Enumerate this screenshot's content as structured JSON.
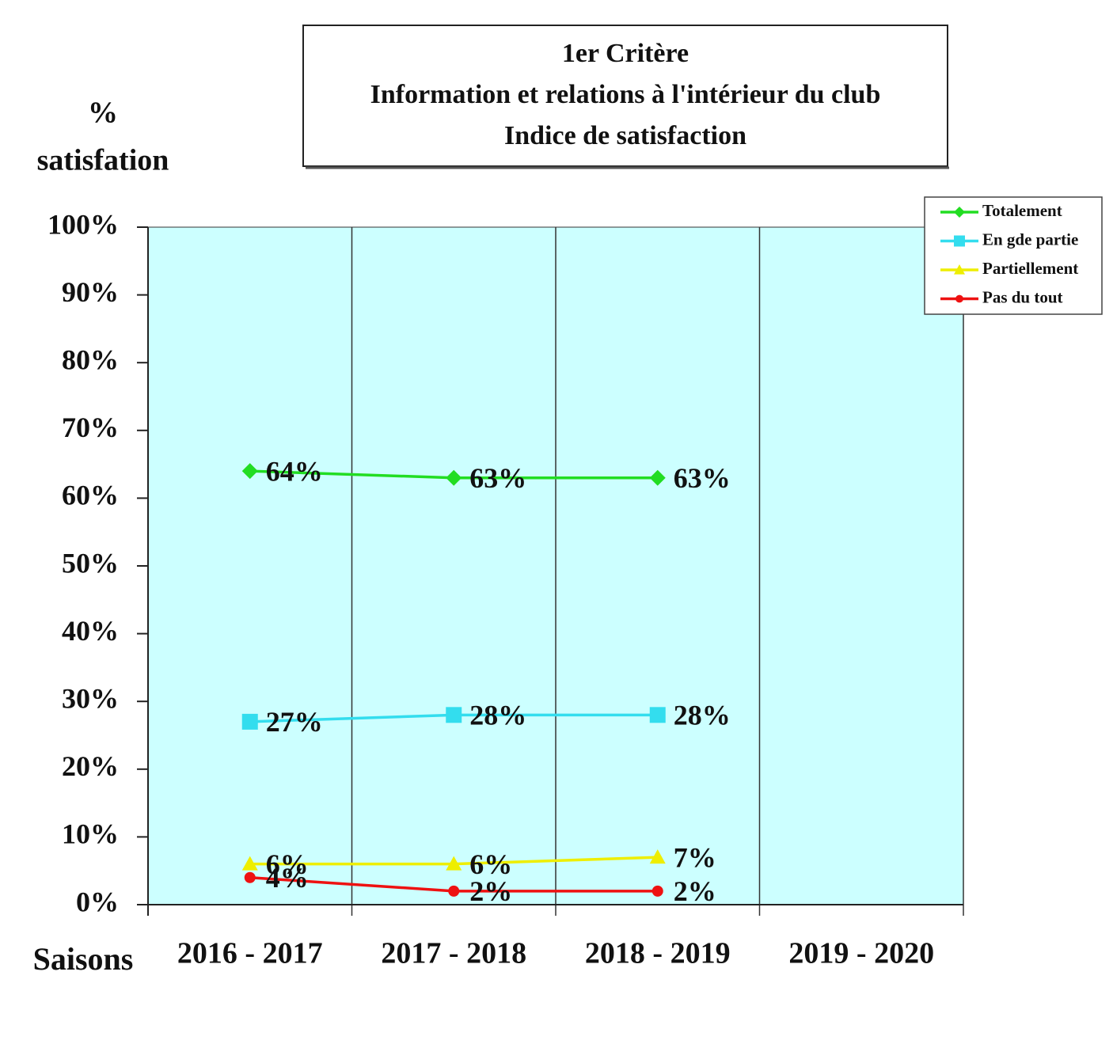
{
  "chart_data": {
    "type": "line",
    "title": [
      "1er  Critère",
      "Information et relations à l'intérieur du club",
      "Indice de satisfaction"
    ],
    "ylabel": [
      "%",
      "satisfation"
    ],
    "xlabel": "Saisons",
    "categories": [
      "2016 - 2017",
      "2017 - 2018",
      "2018 - 2019",
      "2019 - 2020"
    ],
    "series": [
      {
        "name": "Totalement",
        "color": "#22dd22",
        "marker": "diamond",
        "values": [
          64,
          63,
          63,
          null
        ],
        "value_labels": [
          "64%",
          "63%",
          "63%",
          null
        ]
      },
      {
        "name": "En gde partie",
        "color": "#33ddee",
        "marker": "square",
        "values": [
          27,
          28,
          28,
          null
        ],
        "value_labels": [
          "27%",
          "28%",
          "28%",
          null
        ]
      },
      {
        "name": "Partiellement",
        "color": "#eeee00",
        "marker": "triangle",
        "values": [
          6,
          6,
          7,
          null
        ],
        "value_labels": [
          "6%",
          "6%",
          "7%",
          null
        ]
      },
      {
        "name": "Pas du tout",
        "color": "#ee1111",
        "marker": "circle",
        "values": [
          4,
          2,
          2,
          null
        ],
        "value_labels": [
          "4%",
          "2%",
          "2%",
          null
        ]
      }
    ],
    "ylim": [
      0,
      100
    ],
    "yticks": [
      {
        "value": 0,
        "label": "0%"
      },
      {
        "value": 10,
        "label": "10%"
      },
      {
        "value": 20,
        "label": "20%"
      },
      {
        "value": 30,
        "label": "30%"
      },
      {
        "value": 40,
        "label": "40%"
      },
      {
        "value": 50,
        "label": "50%"
      },
      {
        "value": 60,
        "label": "60%"
      },
      {
        "value": 70,
        "label": "70%"
      },
      {
        "value": 80,
        "label": "80%"
      },
      {
        "value": 90,
        "label": "90%"
      },
      {
        "value": 100,
        "label": "100%"
      }
    ],
    "legend": "top-right"
  }
}
